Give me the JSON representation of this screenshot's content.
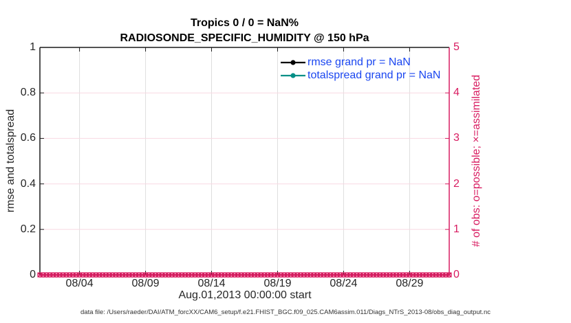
{
  "title": {
    "line1": "Tropics 0 / 0 = NaN%",
    "line2": "RADIOSONDE_SPECIFIC_HUMIDITY @ 150 hPa"
  },
  "chart_data": {
    "type": "line",
    "title": "Tropics 0 / 0 = NaN% — RADIOSONDE_SPECIFIC_HUMIDITY @ 150 hPa",
    "x_axis": {
      "label": "Aug.01,2013 00:00:00 start",
      "tick_labels": [
        "08/04",
        "08/09",
        "08/14",
        "08/19",
        "08/24",
        "08/29"
      ],
      "tick_days": [
        3,
        8,
        13,
        18,
        23,
        28
      ],
      "range_days": [
        0,
        31
      ]
    },
    "y_left": {
      "label": "rmse and totalspread",
      "tick_labels": [
        "0",
        "0.2",
        "0.4",
        "0.6",
        "0.8",
        "1"
      ],
      "tick_values": [
        0,
        0.2,
        0.4,
        0.6,
        0.8,
        1
      ],
      "range": [
        0,
        1
      ],
      "color": "#262626"
    },
    "y_right": {
      "label": "# of obs: o=possible; ×=assimilated",
      "tick_labels": [
        "0",
        "1",
        "2",
        "3",
        "4",
        "5"
      ],
      "tick_values": [
        0,
        1,
        2,
        3,
        4,
        5
      ],
      "range": [
        0,
        5
      ],
      "color": "#d81b60"
    },
    "series": [
      {
        "name": "rmse grand pr = NaN",
        "color": "#000000",
        "values": []
      },
      {
        "name": "totalspread grand pr = NaN",
        "color": "#008f86",
        "values": []
      }
    ],
    "obs_counts": {
      "color": "#d81b60",
      "possible": {
        "marker": "o",
        "value_at_every_time": 0
      },
      "assimilated": {
        "marker": "×",
        "value_at_every_time": 0
      },
      "times_hours": {
        "start": 0,
        "end": 744,
        "step": 6
      }
    },
    "grid": {
      "vertical_color": "#dedede",
      "horizontal_color": "#f8d8e2"
    },
    "spine_color": "#1a1a1a"
  },
  "legend": {
    "text_color": "#1a46f0"
  },
  "footer": {
    "text": "data file: /Users/raeder/DAI/ATM_forcXX/CAM6_setup/f.e21.FHIST_BGC.f09_025.CAM6assim.011/Diags_NTrS_2013-08/obs_diag_output.nc"
  }
}
